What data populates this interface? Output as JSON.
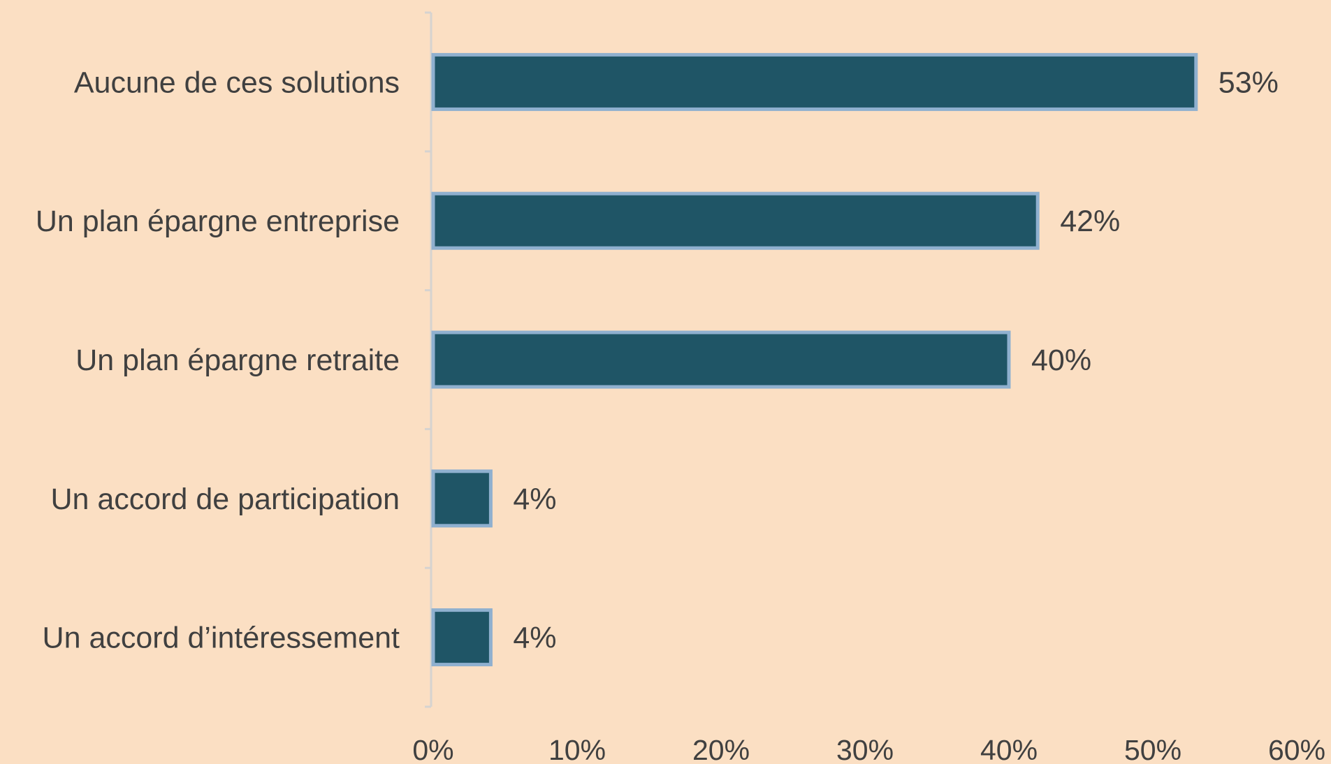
{
  "chart_data": {
    "type": "bar",
    "orientation": "horizontal",
    "categories": [
      "Aucune de ces solutions",
      "Un plan épargne entreprise",
      "Un plan épargne retraite",
      "Un accord de participation",
      "Un accord d’intéressement"
    ],
    "values": [
      53,
      42,
      40,
      4,
      4
    ],
    "value_labels": [
      "53%",
      "42%",
      "40%",
      "4%",
      "4%"
    ],
    "xlim": [
      0,
      60
    ],
    "x_ticks": [
      0,
      10,
      20,
      30,
      40,
      50,
      60
    ],
    "x_tick_labels": [
      "0%",
      "10%",
      "20%",
      "30%",
      "40%",
      "50%",
      "60%"
    ],
    "title": "",
    "xlabel": "",
    "ylabel": "",
    "grid": false,
    "legend": "none",
    "colors": {
      "background": "#fbdfc3",
      "bar_fill": "#1f5566",
      "bar_border": "#8fb0cf",
      "axis": "#d6d3d0",
      "text": "#404040"
    }
  }
}
